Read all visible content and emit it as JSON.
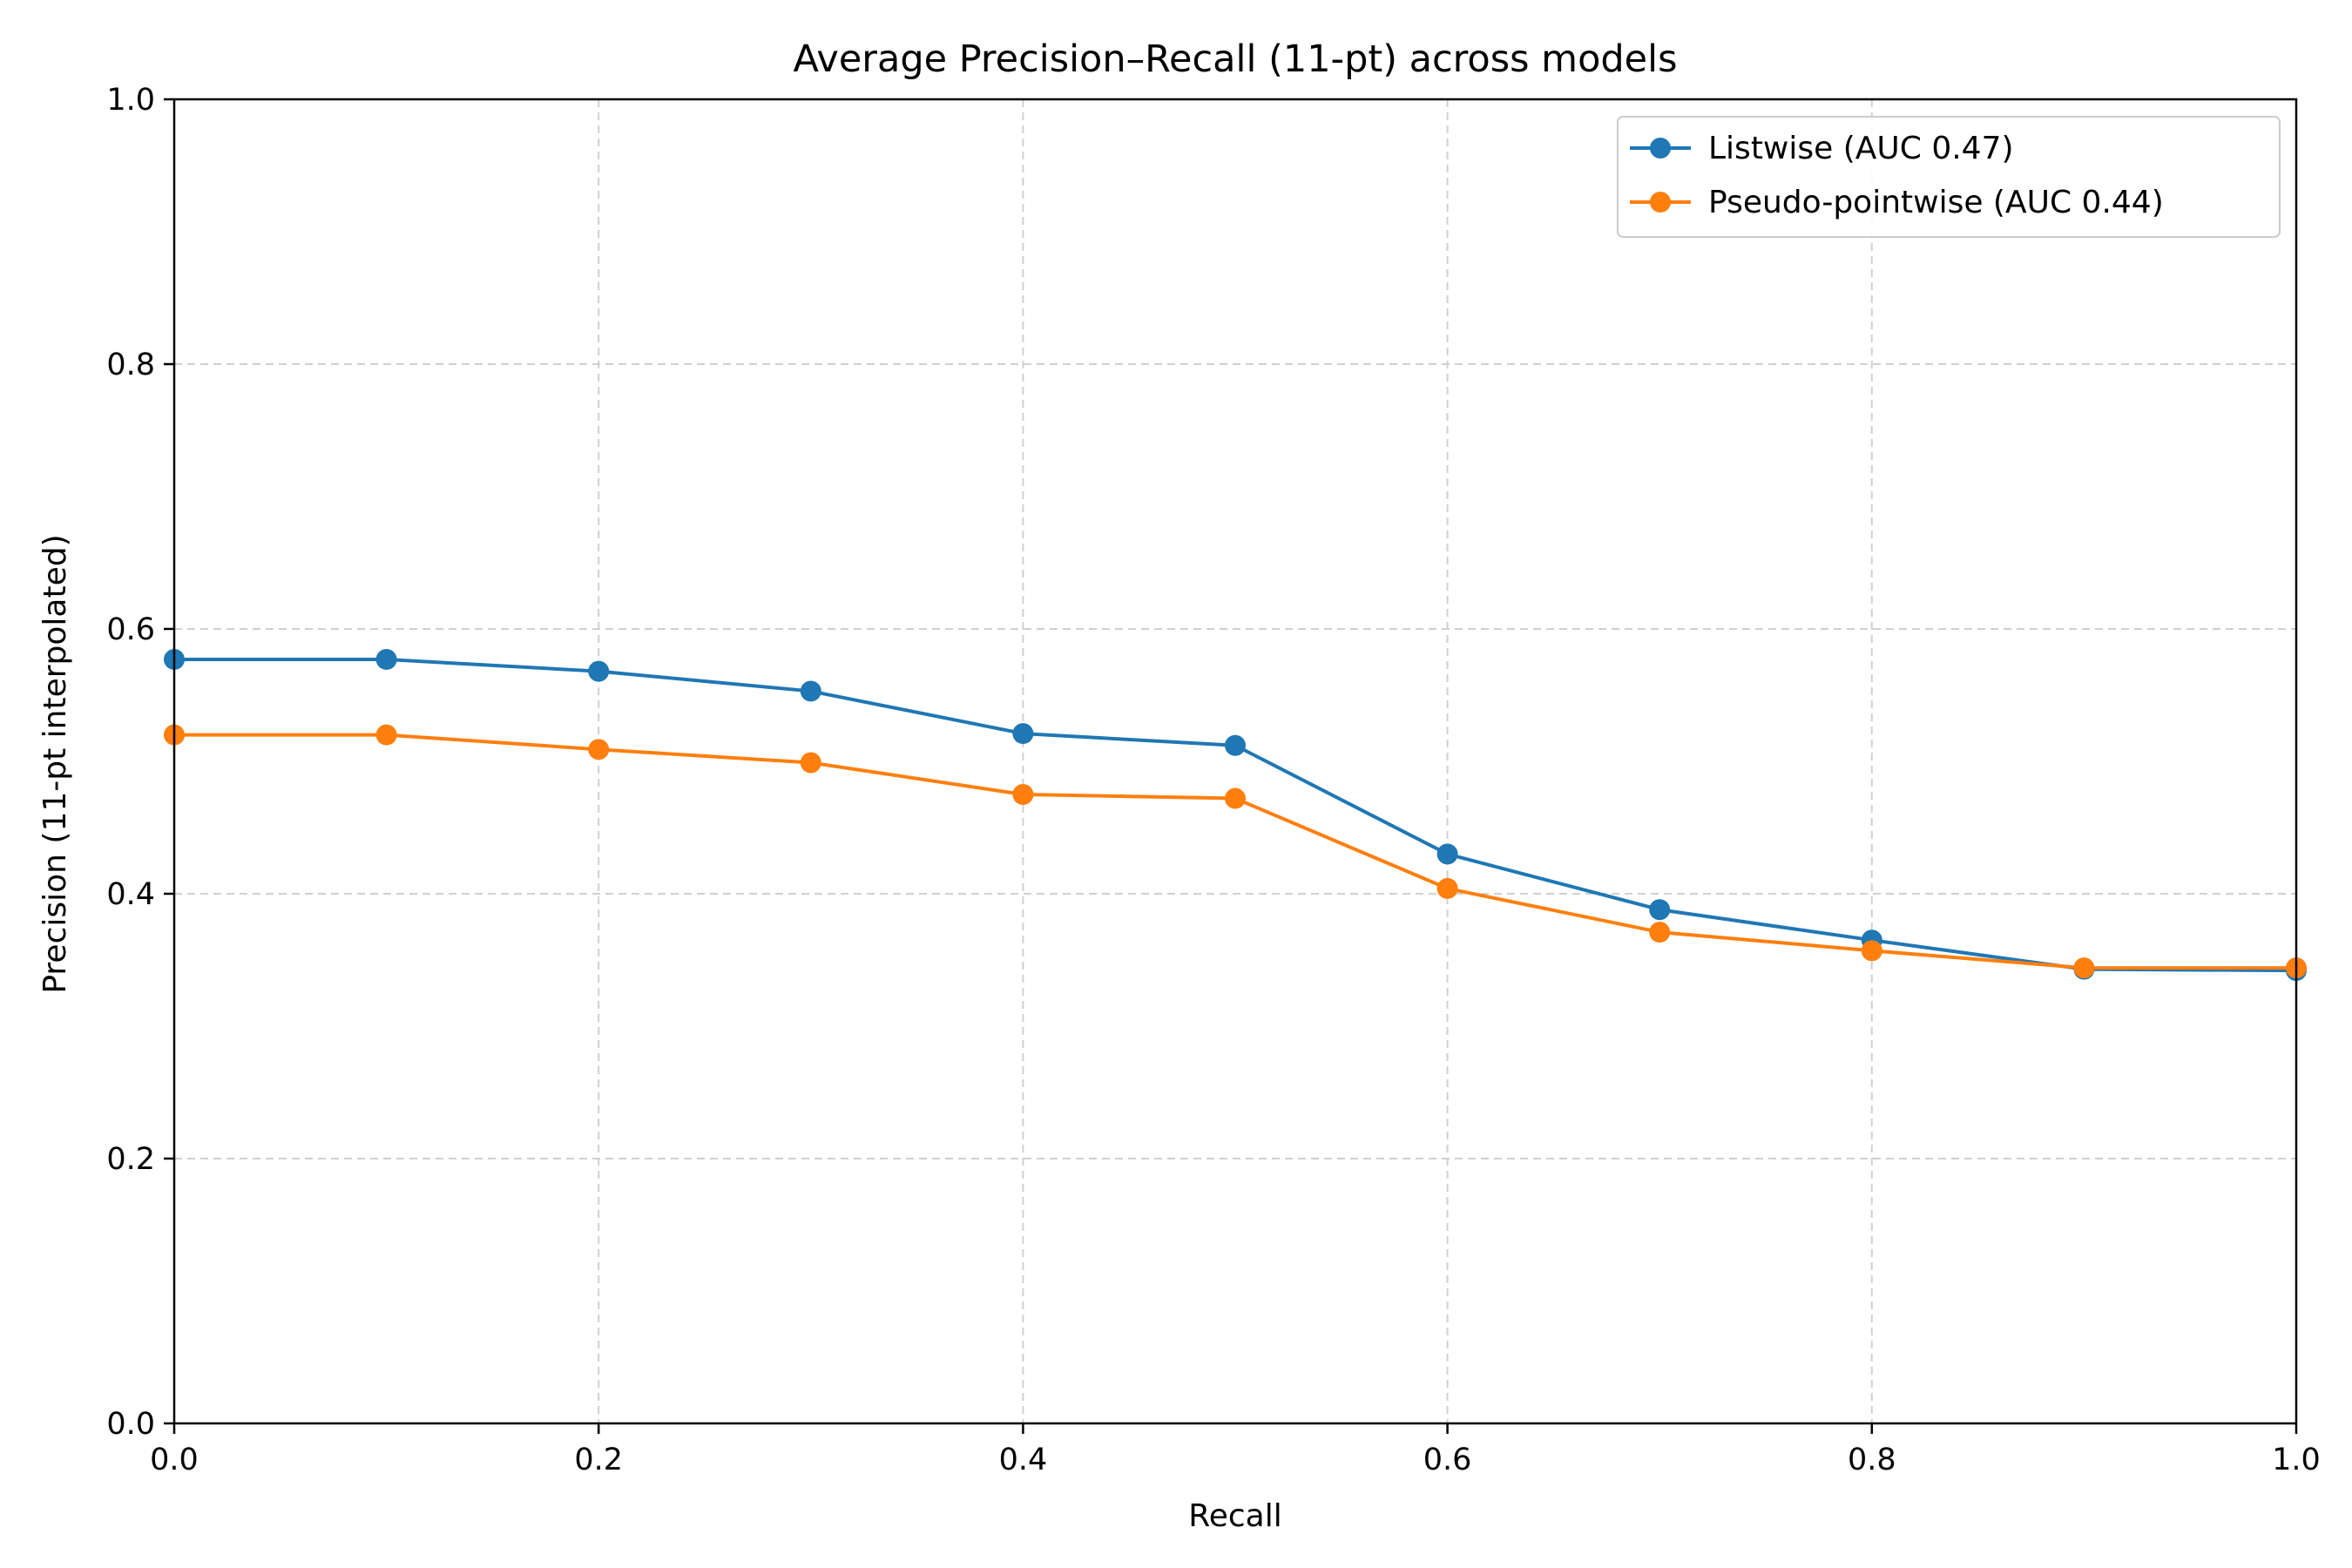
{
  "chart_data": {
    "type": "line",
    "title": "Average Precision–Recall (11-pt) across models",
    "xlabel": "Recall",
    "ylabel": "Precision (11-pt interpolated)",
    "xlim": [
      0.0,
      1.0
    ],
    "ylim": [
      0.0,
      1.0
    ],
    "xticks": [
      "0.0",
      "0.2",
      "0.4",
      "0.6",
      "0.8",
      "1.0"
    ],
    "yticks": [
      "0.0",
      "0.2",
      "0.4",
      "0.6",
      "0.8",
      "1.0"
    ],
    "grid": true,
    "legend_position": "top-right",
    "x": [
      0.0,
      0.1,
      0.2,
      0.3,
      0.4,
      0.5,
      0.6,
      0.7,
      0.8,
      0.9,
      1.0
    ],
    "series": [
      {
        "name": "Listwise (AUC 0.47)",
        "color": "#1f77b4",
        "values": [
          0.577,
          0.577,
          0.568,
          0.553,
          0.521,
          0.512,
          0.43,
          0.388,
          0.365,
          0.343,
          0.342
        ]
      },
      {
        "name": "Pseudo-pointwise (AUC 0.44)",
        "color": "#ff7f0e",
        "values": [
          0.52,
          0.52,
          0.509,
          0.499,
          0.475,
          0.472,
          0.404,
          0.371,
          0.357,
          0.344,
          0.344
        ]
      }
    ]
  }
}
